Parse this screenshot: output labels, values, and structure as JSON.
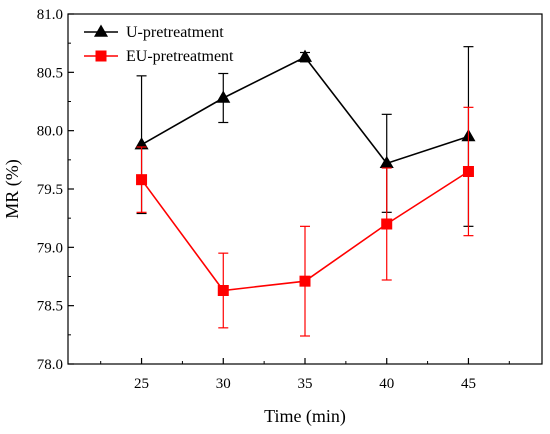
{
  "chart_data": {
    "type": "line",
    "title": "",
    "xlabel": "Time (min)",
    "ylabel": "MR (%)",
    "x": [
      25,
      30,
      35,
      40,
      45
    ],
    "x_ticks": [
      "25",
      "30",
      "35",
      "40",
      "45"
    ],
    "xlim": [
      20.5,
      49.5
    ],
    "ylim": [
      78.0,
      81.0
    ],
    "y_ticks": [
      "78.0",
      "78.5",
      "79.0",
      "79.5",
      "80.0",
      "80.5",
      "81.0"
    ],
    "grid": false,
    "legend_position": "top-left",
    "series": [
      {
        "name": "U-pretreatment",
        "color": "#000000",
        "marker": "triangle",
        "values": [
          79.88,
          80.28,
          80.63,
          79.72,
          79.95
        ],
        "error": [
          0.59,
          0.21,
          0.04,
          0.42,
          0.77
        ]
      },
      {
        "name": "EU-pretreatment",
        "color": "#ff0000",
        "marker": "square",
        "values": [
          79.58,
          78.63,
          78.71,
          79.2,
          79.65
        ],
        "error": [
          0.28,
          0.32,
          0.47,
          0.48,
          0.55
        ]
      }
    ]
  }
}
